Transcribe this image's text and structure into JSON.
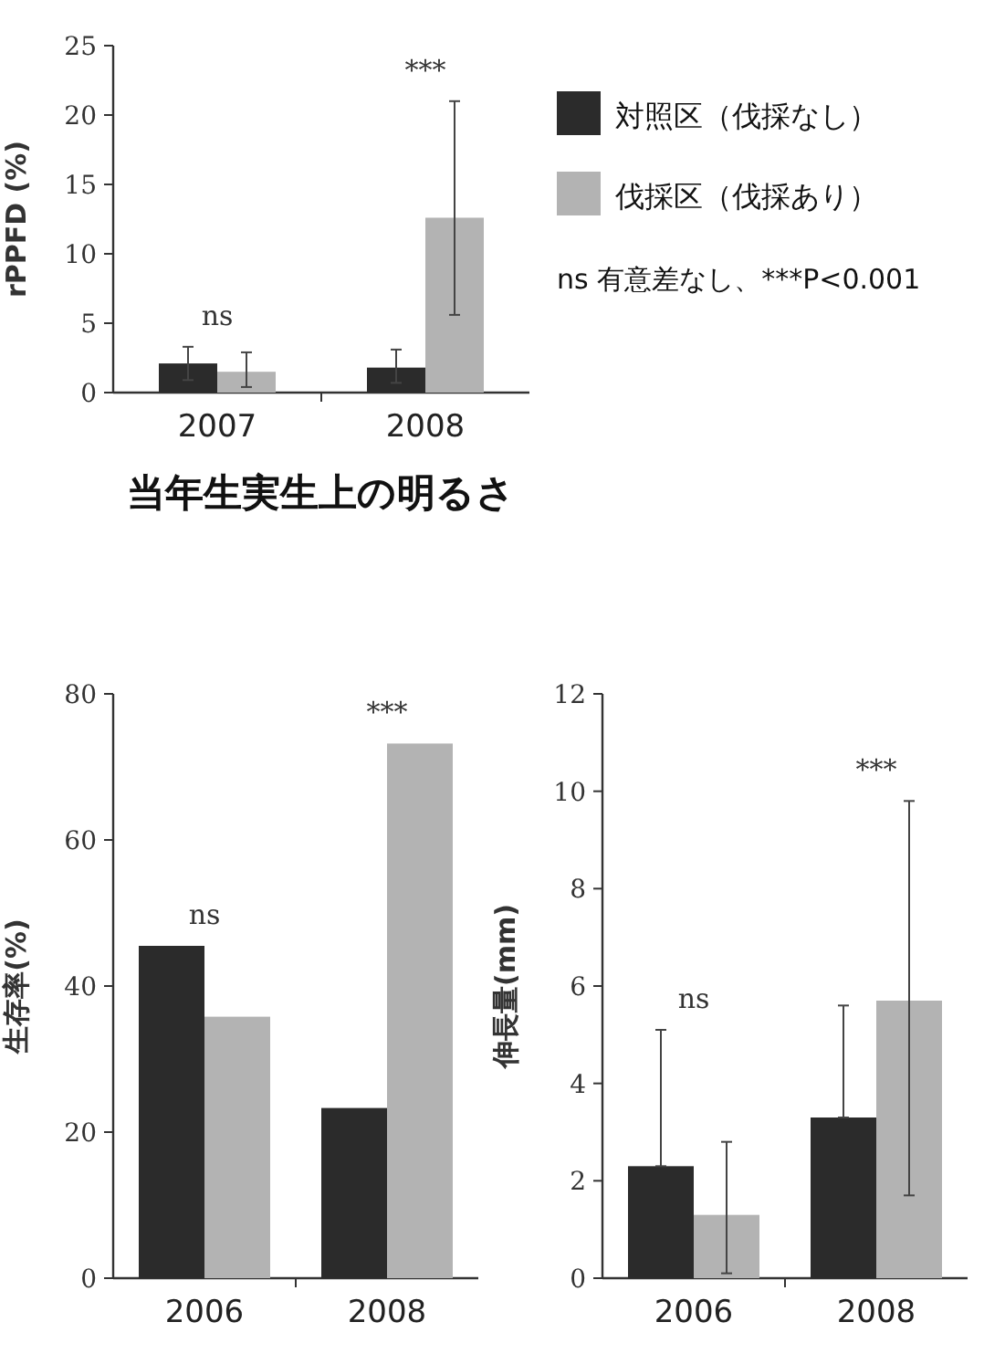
{
  "chart_data": [
    {
      "type": "bar",
      "title": "当年生実生上の明るさ",
      "ylabel": "rPPFD (%)",
      "categories": [
        "2007",
        "2008"
      ],
      "series": [
        {
          "name": "対照区（伐採なし）",
          "color": "#2b2b2b",
          "values": [
            2.1,
            1.8
          ],
          "errors": [
            [
              0.9,
              3.3
            ],
            [
              0.7,
              3.1
            ]
          ]
        },
        {
          "name": "伐採区（伐採あり）",
          "color": "#b3b3b3",
          "values": [
            1.5,
            12.6
          ],
          "errors": [
            [
              0.4,
              2.9
            ],
            [
              5.6,
              21.0
            ]
          ]
        }
      ],
      "ylim": [
        0,
        25
      ],
      "yticks": [
        0,
        5,
        10,
        15,
        20,
        25
      ],
      "legend": "right",
      "annotations": [
        "ns",
        "***",
        "ns 有意差なし、***P<0.001"
      ]
    },
    {
      "type": "bar",
      "ylabel": "生存率(%)",
      "categories": [
        "2006",
        "2008"
      ],
      "series": [
        {
          "color": "#2b2b2b",
          "values": [
            45.5,
            23.3
          ]
        },
        {
          "color": "#b3b3b3",
          "values": [
            35.8,
            73.2
          ]
        }
      ],
      "ylim": [
        0,
        80
      ],
      "yticks": [
        0,
        20,
        40,
        60,
        80
      ],
      "annotations": [
        "ns",
        "***"
      ]
    },
    {
      "type": "bar",
      "ylabel": "伸長量(mm)",
      "categories": [
        "2006",
        "2008"
      ],
      "series": [
        {
          "color": "#2b2b2b",
          "values": [
            2.3,
            3.3
          ],
          "errors": [
            [
              2.3,
              5.1
            ],
            [
              3.3,
              5.6
            ]
          ]
        },
        {
          "color": "#b3b3b3",
          "values": [
            1.3,
            5.7
          ],
          "errors": [
            [
              0.1,
              2.8
            ],
            [
              1.7,
              9.8
            ]
          ]
        }
      ],
      "ylim": [
        0,
        12
      ],
      "yticks": [
        0,
        2,
        4,
        6,
        8,
        10,
        12
      ],
      "annotations": [
        "ns",
        "***"
      ]
    }
  ]
}
